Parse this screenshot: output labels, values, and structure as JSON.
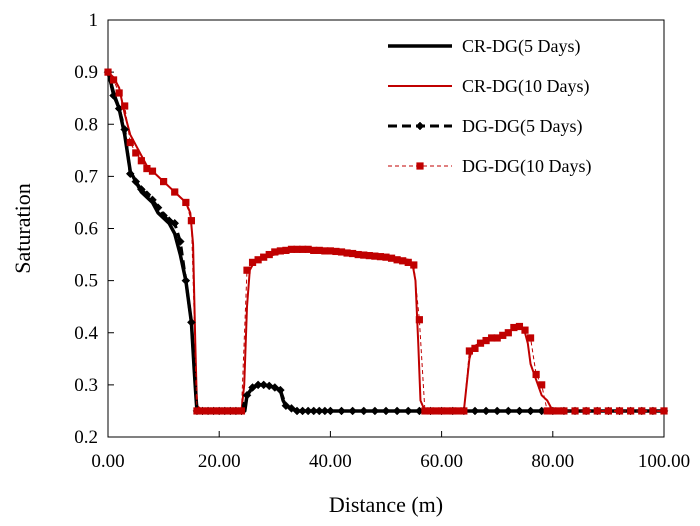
{
  "chart_data": {
    "type": "line",
    "xlabel": "Distance (m)",
    "ylabel": "Saturation",
    "xlim": [
      0,
      100
    ],
    "ylim": [
      0.2,
      1.0
    ],
    "x_ticks": [
      0,
      20,
      40,
      60,
      80,
      100
    ],
    "x_tick_labels": [
      "0.00",
      "20.00",
      "40.00",
      "60.00",
      "80.00",
      "100.00"
    ],
    "y_ticks": [
      0.2,
      0.3,
      0.4,
      0.5,
      0.6,
      0.7,
      0.8,
      0.9,
      1.0
    ],
    "y_tick_labels": [
      "0.2",
      "0.3",
      "0.4",
      "0.5",
      "0.6",
      "0.7",
      "0.8",
      "0.9",
      "1"
    ],
    "grid": false,
    "legend_position": "top-right",
    "series": [
      {
        "name": "CR-DG(5 Days)",
        "color": "#000000",
        "style": "solid-thick",
        "marker": "none",
        "x": [
          0,
          1,
          2,
          3,
          4,
          5,
          6,
          7,
          8,
          9,
          10,
          11,
          12,
          13,
          14,
          15,
          15.5,
          15.8,
          16,
          17,
          20,
          24,
          24.6,
          25,
          26,
          27,
          28,
          29,
          30,
          31,
          31.5,
          32,
          34,
          40,
          50,
          60,
          70,
          80,
          90,
          100
        ],
        "y": [
          0.9,
          0.86,
          0.83,
          0.78,
          0.71,
          0.69,
          0.67,
          0.66,
          0.65,
          0.63,
          0.62,
          0.61,
          0.59,
          0.55,
          0.5,
          0.42,
          0.33,
          0.28,
          0.25,
          0.25,
          0.25,
          0.25,
          0.25,
          0.28,
          0.295,
          0.3,
          0.3,
          0.298,
          0.295,
          0.29,
          0.27,
          0.26,
          0.25,
          0.25,
          0.25,
          0.25,
          0.25,
          0.25,
          0.25,
          0.25
        ]
      },
      {
        "name": "CR-DG(10 Days)",
        "color": "#c00000",
        "style": "solid",
        "marker": "none",
        "x": [
          0,
          1,
          2,
          3,
          4,
          5,
          6,
          7,
          8,
          9,
          10,
          11,
          12,
          13,
          14,
          14.8,
          15.3,
          15.7,
          16,
          17,
          20,
          24,
          24.5,
          25,
          25.5,
          26,
          27,
          28,
          30,
          32,
          34,
          36,
          38,
          40,
          42,
          44,
          46,
          48,
          50,
          52,
          54,
          54.8,
          55.3,
          55.8,
          56.2,
          57,
          60,
          64,
          64.5,
          65,
          65.5,
          66,
          67,
          68,
          69,
          70,
          71,
          72,
          73,
          74,
          74.5,
          75,
          75.5,
          76,
          77,
          78,
          79,
          79.5,
          80,
          81,
          85,
          90,
          95,
          100
        ],
        "y": [
          0.9,
          0.89,
          0.87,
          0.82,
          0.78,
          0.76,
          0.74,
          0.72,
          0.71,
          0.7,
          0.69,
          0.68,
          0.67,
          0.66,
          0.65,
          0.63,
          0.57,
          0.38,
          0.26,
          0.25,
          0.25,
          0.25,
          0.3,
          0.45,
          0.52,
          0.53,
          0.54,
          0.545,
          0.55,
          0.555,
          0.56,
          0.56,
          0.558,
          0.557,
          0.555,
          0.553,
          0.55,
          0.548,
          0.545,
          0.543,
          0.54,
          0.53,
          0.5,
          0.38,
          0.27,
          0.25,
          0.25,
          0.25,
          0.3,
          0.35,
          0.37,
          0.375,
          0.38,
          0.385,
          0.39,
          0.39,
          0.395,
          0.4,
          0.41,
          0.41,
          0.41,
          0.4,
          0.38,
          0.34,
          0.31,
          0.28,
          0.27,
          0.26,
          0.25,
          0.25,
          0.25,
          0.25,
          0.25,
          0.25
        ]
      },
      {
        "name": "DG-DG(5 Days)",
        "color": "#000000",
        "style": "dashed-thick",
        "marker": "diamond",
        "x": [
          0,
          1,
          2,
          3,
          4,
          5,
          6,
          7,
          8,
          9,
          10,
          11,
          12,
          13,
          14,
          15,
          16,
          17,
          18,
          19,
          20,
          21,
          22,
          23,
          24,
          25,
          26,
          27,
          28,
          29,
          30,
          31,
          32,
          33,
          34,
          35,
          36,
          37,
          38,
          39,
          40,
          42,
          44,
          46,
          48,
          50,
          52,
          54,
          56,
          58,
          60,
          62,
          64,
          66,
          68,
          70,
          72,
          74,
          76,
          78,
          80,
          82,
          84,
          86,
          88,
          90,
          92,
          94,
          96,
          98,
          100
        ],
        "y": [
          0.9,
          0.855,
          0.83,
          0.79,
          0.705,
          0.69,
          0.675,
          0.665,
          0.655,
          0.64,
          0.625,
          0.615,
          0.61,
          0.575,
          0.5,
          0.42,
          0.25,
          0.25,
          0.25,
          0.25,
          0.25,
          0.25,
          0.25,
          0.25,
          0.25,
          0.28,
          0.295,
          0.3,
          0.3,
          0.298,
          0.295,
          0.29,
          0.26,
          0.255,
          0.25,
          0.25,
          0.25,
          0.25,
          0.25,
          0.25,
          0.25,
          0.25,
          0.25,
          0.25,
          0.25,
          0.25,
          0.25,
          0.25,
          0.25,
          0.25,
          0.25,
          0.25,
          0.25,
          0.25,
          0.25,
          0.25,
          0.25,
          0.25,
          0.25,
          0.25,
          0.25,
          0.25,
          0.25,
          0.25,
          0.25,
          0.25,
          0.25,
          0.25,
          0.25,
          0.25,
          0.25
        ]
      },
      {
        "name": "DG-DG(10 Days)",
        "color": "#c00000",
        "style": "dashed-thin",
        "marker": "square",
        "x": [
          0,
          1,
          2,
          3,
          4,
          5,
          6,
          7,
          8,
          10,
          12,
          14,
          15,
          16,
          17,
          18,
          19,
          20,
          21,
          22,
          23,
          24,
          25,
          26,
          27,
          28,
          29,
          30,
          31,
          32,
          33,
          34,
          35,
          36,
          37,
          38,
          39,
          40,
          41,
          42,
          43,
          44,
          45,
          46,
          47,
          48,
          49,
          50,
          51,
          52,
          53,
          54,
          55,
          56,
          57,
          58,
          59,
          60,
          61,
          62,
          63,
          64,
          65,
          66,
          67,
          68,
          69,
          70,
          71,
          72,
          73,
          74,
          75,
          76,
          77,
          78,
          79,
          80,
          81,
          82,
          84,
          86,
          88,
          90,
          92,
          94,
          96,
          98,
          100
        ],
        "y": [
          0.9,
          0.885,
          0.86,
          0.835,
          0.765,
          0.745,
          0.73,
          0.715,
          0.71,
          0.69,
          0.67,
          0.65,
          0.615,
          0.25,
          0.25,
          0.25,
          0.25,
          0.25,
          0.25,
          0.25,
          0.25,
          0.25,
          0.52,
          0.535,
          0.54,
          0.545,
          0.55,
          0.555,
          0.557,
          0.558,
          0.56,
          0.56,
          0.56,
          0.56,
          0.558,
          0.558,
          0.557,
          0.557,
          0.556,
          0.555,
          0.553,
          0.552,
          0.55,
          0.549,
          0.548,
          0.547,
          0.546,
          0.545,
          0.543,
          0.54,
          0.538,
          0.535,
          0.53,
          0.425,
          0.25,
          0.25,
          0.25,
          0.25,
          0.25,
          0.25,
          0.25,
          0.25,
          0.365,
          0.37,
          0.38,
          0.385,
          0.39,
          0.39,
          0.395,
          0.4,
          0.41,
          0.412,
          0.405,
          0.39,
          0.32,
          0.3,
          0.25,
          0.25,
          0.25,
          0.25,
          0.25,
          0.25,
          0.25,
          0.25,
          0.25,
          0.25,
          0.25,
          0.25,
          0.25
        ]
      }
    ]
  }
}
